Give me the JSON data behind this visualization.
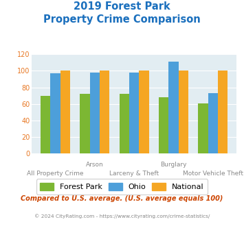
{
  "title_line1": "2019 Forest Park",
  "title_line2": "Property Crime Comparison",
  "categories": [
    "All Property Crime",
    "Arson",
    "Larceny & Theft",
    "Burglary",
    "Motor Vehicle Theft"
  ],
  "category_labels_top": [
    "",
    "Arson",
    "",
    "Burglary",
    ""
  ],
  "category_labels_bottom": [
    "All Property Crime",
    "",
    "Larceny & Theft",
    "",
    "Motor Vehicle Theft"
  ],
  "forest_park": [
    70,
    72,
    72,
    68,
    61
  ],
  "ohio": [
    97,
    98,
    98,
    111,
    73
  ],
  "national": [
    100,
    100,
    100,
    100,
    100
  ],
  "forest_park_color": "#7cb733",
  "ohio_color": "#4d9fda",
  "national_color": "#f5a623",
  "title_color": "#1a6fbd",
  "plot_bg_color": "#e2edf2",
  "ylim": [
    0,
    120
  ],
  "yticks": [
    0,
    20,
    40,
    60,
    80,
    100,
    120
  ],
  "ytick_color": "#e87722",
  "subtitle_color": "#cc4400",
  "footnote_color": "#888888",
  "subtitle_text": "Compared to U.S. average. (U.S. average equals 100)",
  "footnote_text": "© 2024 CityRating.com - https://www.cityrating.com/crime-statistics/",
  "legend_labels": [
    "Forest Park",
    "Ohio",
    "National"
  ],
  "bar_width": 0.25
}
